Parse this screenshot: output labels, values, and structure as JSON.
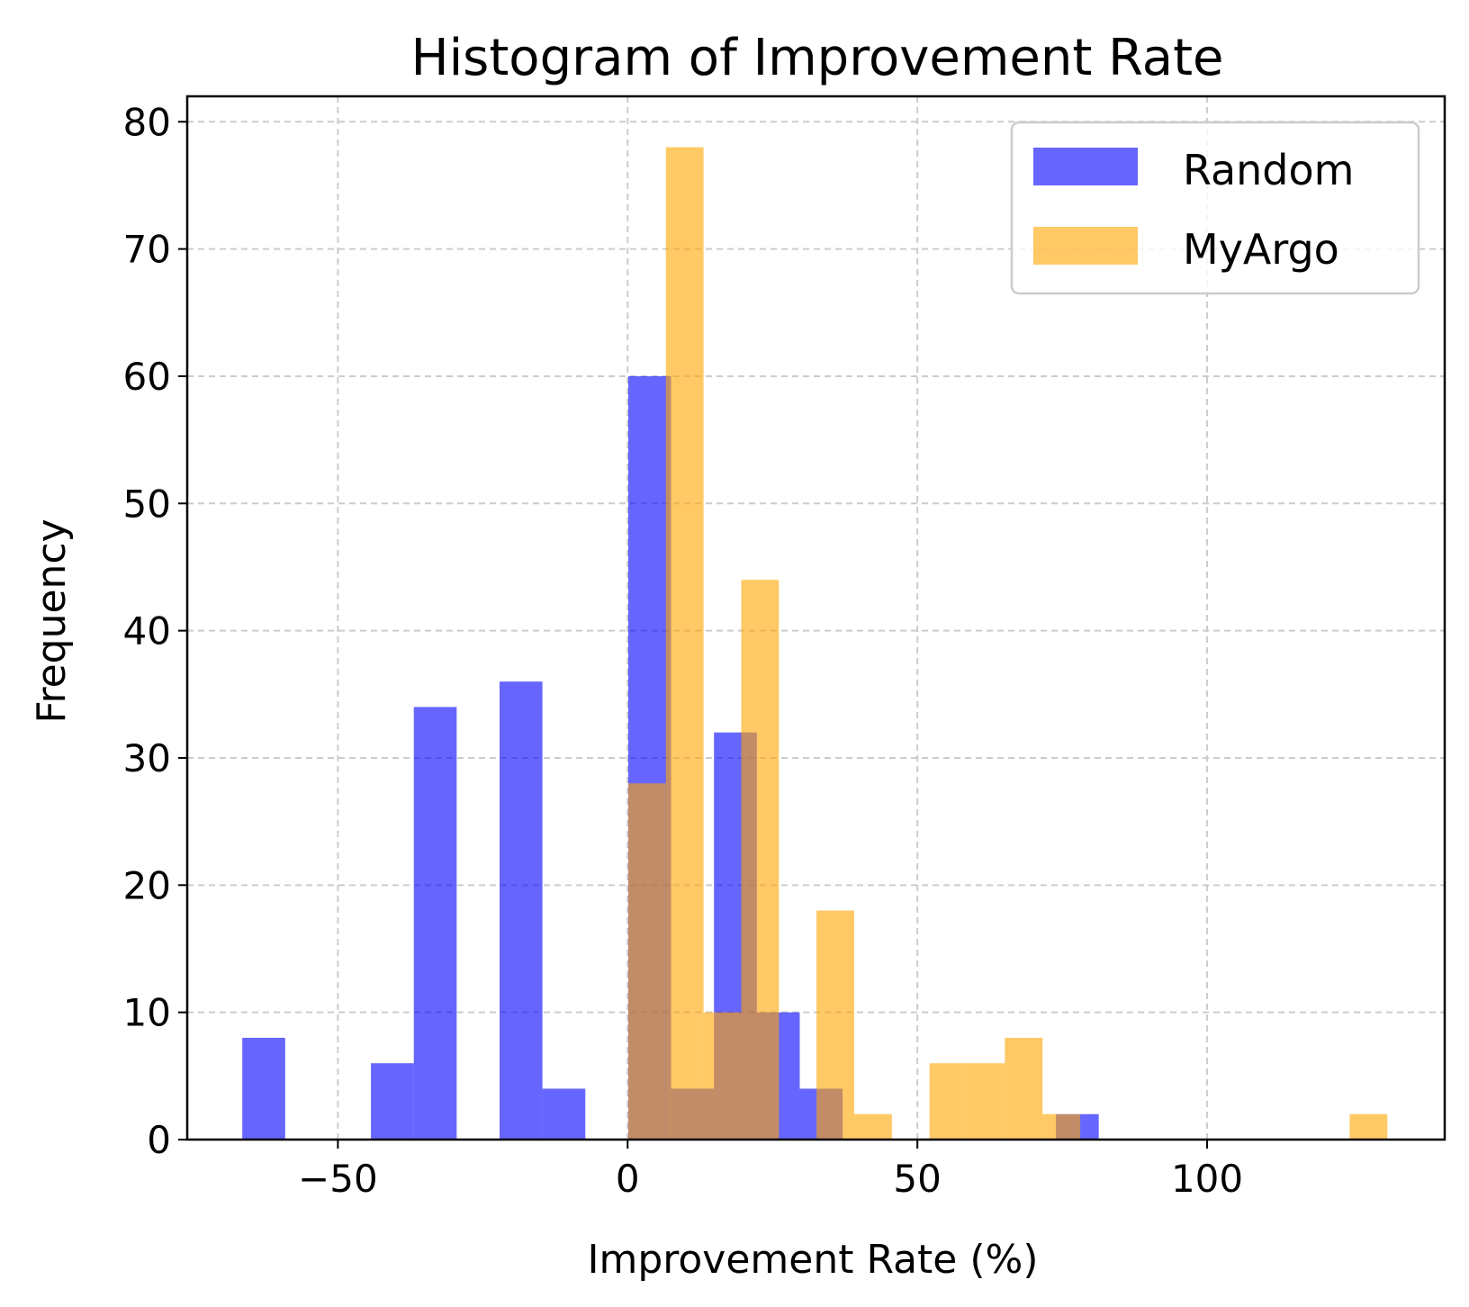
{
  "chart_data": {
    "type": "bar",
    "title": "Histogram of Improvement Rate",
    "xlabel": "Improvement Rate (%)",
    "ylabel": "Frequency",
    "xlim": [
      -76,
      141
    ],
    "ylim": [
      0,
      82
    ],
    "xticks": [
      -50,
      0,
      50,
      100
    ],
    "xtick_labels": [
      "−50",
      "0",
      "50",
      "100"
    ],
    "yticks": [
      0,
      10,
      20,
      30,
      40,
      50,
      60,
      70,
      80
    ],
    "ytick_labels": [
      "0",
      "10",
      "20",
      "30",
      "40",
      "50",
      "60",
      "70",
      "80"
    ],
    "grid": true,
    "legend_position": "top-right",
    "series": [
      {
        "name": "Random",
        "color": "#0000ff",
        "opacity": 0.6,
        "bins": [
          {
            "x0": -66.5,
            "x1": -59.1,
            "count": 8
          },
          {
            "x0": -44.3,
            "x1": -36.9,
            "count": 6
          },
          {
            "x0": -36.9,
            "x1": -29.5,
            "count": 34
          },
          {
            "x0": -22.1,
            "x1": -14.7,
            "count": 36
          },
          {
            "x0": -14.7,
            "x1": -7.3,
            "count": 4
          },
          {
            "x0": 0.1,
            "x1": 7.5,
            "count": 60
          },
          {
            "x0": 7.5,
            "x1": 14.9,
            "count": 4
          },
          {
            "x0": 14.9,
            "x1": 22.3,
            "count": 32
          },
          {
            "x0": 22.3,
            "x1": 29.7,
            "count": 10
          },
          {
            "x0": 29.7,
            "x1": 37.1,
            "count": 4
          },
          {
            "x0": 73.9,
            "x1": 81.3,
            "count": 2
          }
        ]
      },
      {
        "name": "MyArgo",
        "color": "#ffa500",
        "opacity": 0.6,
        "bins": [
          {
            "x0": 0.1,
            "x1": 6.6,
            "count": 28
          },
          {
            "x0": 6.6,
            "x1": 13.1,
            "count": 78
          },
          {
            "x0": 13.1,
            "x1": 19.6,
            "count": 10
          },
          {
            "x0": 19.6,
            "x1": 26.1,
            "count": 44
          },
          {
            "x0": 32.6,
            "x1": 39.1,
            "count": 18
          },
          {
            "x0": 39.1,
            "x1": 45.6,
            "count": 2
          },
          {
            "x0": 52.1,
            "x1": 58.6,
            "count": 6
          },
          {
            "x0": 58.6,
            "x1": 65.1,
            "count": 6
          },
          {
            "x0": 65.1,
            "x1": 71.6,
            "count": 8
          },
          {
            "x0": 71.6,
            "x1": 78.1,
            "count": 2
          },
          {
            "x0": 124.6,
            "x1": 131.1,
            "count": 2
          }
        ]
      }
    ]
  }
}
